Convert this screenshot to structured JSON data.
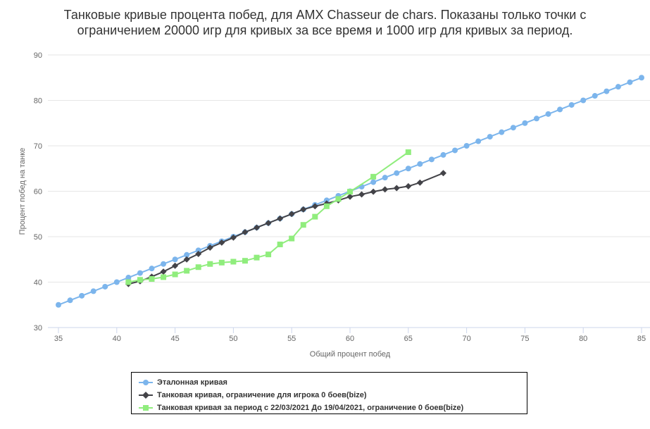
{
  "chart_data": {
    "type": "line",
    "title": "Танковые кривые процента побед, для AMX Chasseur de chars. Показаны только точки с\nограничением 20000 игр для кривых за все время и 1000 игр для кривых за период.",
    "xlabel": "Общий процент побед",
    "ylabel": "Процент побед на танке",
    "xlim": [
      35,
      85
    ],
    "ylim": [
      30,
      90
    ],
    "x_ticks": [
      35,
      40,
      45,
      50,
      55,
      60,
      65,
      70,
      75,
      80,
      85
    ],
    "y_ticks": [
      30,
      40,
      50,
      60,
      70,
      80,
      90
    ],
    "grid": "horizontal",
    "legend_position": "bottom",
    "series": [
      {
        "name": "Эталонная кривая",
        "color": "#7cb5ec",
        "marker": "circle",
        "x": [
          35,
          36,
          37,
          38,
          39,
          40,
          41,
          42,
          43,
          44,
          45,
          46,
          47,
          48,
          49,
          50,
          51,
          52,
          53,
          54,
          55,
          56,
          57,
          58,
          59,
          60,
          61,
          62,
          63,
          64,
          65,
          66,
          67,
          68,
          69,
          70,
          71,
          72,
          73,
          74,
          75,
          76,
          77,
          78,
          79,
          80,
          81,
          82,
          83,
          84,
          85
        ],
        "y": [
          35,
          36,
          37,
          38,
          39,
          40,
          41,
          42,
          43,
          44,
          45,
          46,
          47,
          48,
          49,
          50,
          51,
          52,
          53,
          54,
          55,
          56,
          57,
          58,
          59,
          60,
          61,
          62,
          63,
          64,
          65,
          66,
          67,
          68,
          69,
          70,
          71,
          72,
          73,
          74,
          75,
          76,
          77,
          78,
          79,
          80,
          81,
          82,
          83,
          84,
          85
        ]
      },
      {
        "name": "Танковая кривая, ограничение для игрока 0 боев(bize)",
        "color": "#434348",
        "marker": "diamond",
        "x": [
          41,
          42,
          43,
          44,
          45,
          46,
          47,
          48,
          49,
          50,
          51,
          52,
          53,
          54,
          55,
          56,
          57,
          58,
          59,
          60,
          61,
          62,
          63,
          64,
          65,
          66,
          68
        ],
        "y": [
          39.6,
          40.2,
          41.2,
          42.3,
          43.6,
          45.0,
          46.2,
          47.6,
          48.7,
          49.8,
          51.0,
          52.0,
          53.0,
          54.0,
          55.0,
          56.0,
          56.7,
          57.3,
          58.0,
          58.8,
          59.3,
          59.9,
          60.4,
          60.7,
          61.1,
          61.9,
          64.0
        ]
      },
      {
        "name": "Танковая кривая за период с 22/03/2021 До 19/04/2021, ограничение 0 боев(bize)",
        "color": "#90ed7d",
        "marker": "square",
        "x": [
          41,
          42,
          43,
          44,
          45,
          46,
          47,
          48,
          49,
          50,
          51,
          52,
          53,
          54,
          55,
          56,
          57,
          58,
          59,
          60,
          62,
          65
        ],
        "y": [
          40.0,
          40.5,
          40.7,
          41.1,
          41.7,
          42.5,
          43.3,
          44.0,
          44.3,
          44.5,
          44.7,
          45.4,
          46.1,
          48.3,
          49.6,
          52.6,
          54.4,
          56.7,
          58.3,
          59.9,
          63.2,
          68.6
        ]
      }
    ]
  }
}
